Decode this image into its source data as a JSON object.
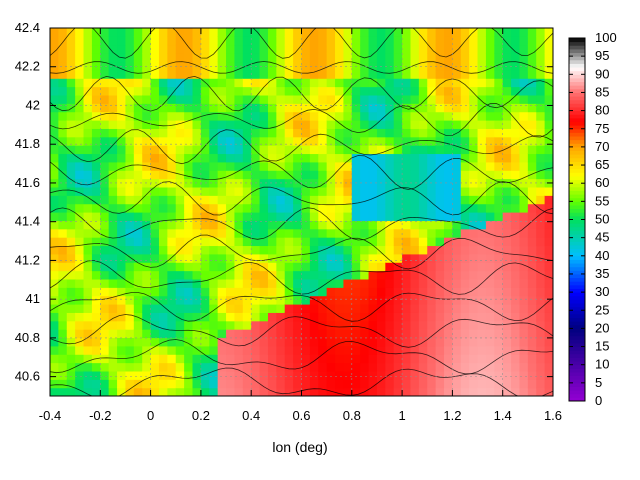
{
  "chart_data": {
    "type": "heatmap",
    "xlabel": "lon (deg)",
    "ylabel": "",
    "xlim": [
      -0.4,
      1.6
    ],
    "ylim": [
      40.5,
      42.4
    ],
    "x_ticks": [
      "-0.4",
      "-0.2",
      "0",
      "0.2",
      "0.4",
      "0.6",
      "0.8",
      "1",
      "1.2",
      "1.4",
      "1.6"
    ],
    "x_tick_values": [
      -0.4,
      -0.2,
      0,
      0.2,
      0.4,
      0.6,
      0.8,
      1.0,
      1.2,
      1.4,
      1.6
    ],
    "y_ticks": [
      "40.6",
      "40.8",
      "41",
      "41.2",
      "41.4",
      "41.6",
      "41.8",
      "42",
      "42.2",
      "42.4"
    ],
    "y_tick_values": [
      40.6,
      40.8,
      41.0,
      41.2,
      41.4,
      41.6,
      41.8,
      42.0,
      42.2,
      42.4
    ],
    "colorbar": {
      "range": [
        0,
        100
      ],
      "ticks": [
        "0",
        "5",
        "10",
        "15",
        "20",
        "25",
        "30",
        "35",
        "40",
        "45",
        "50",
        "55",
        "60",
        "65",
        "70",
        "75",
        "80",
        "85",
        "90",
        "95",
        "100"
      ],
      "tick_values": [
        0,
        5,
        10,
        15,
        20,
        25,
        30,
        35,
        40,
        45,
        50,
        55,
        60,
        65,
        70,
        75,
        80,
        85,
        90,
        95,
        100
      ],
      "stops": [
        {
          "v": 0,
          "color": "#9400d3"
        },
        {
          "v": 20,
          "color": "#000080"
        },
        {
          "v": 30,
          "color": "#0000ff"
        },
        {
          "v": 40,
          "color": "#00bfff"
        },
        {
          "v": 50,
          "color": "#00e060"
        },
        {
          "v": 55,
          "color": "#60ff00"
        },
        {
          "v": 62,
          "color": "#ffff00"
        },
        {
          "v": 70,
          "color": "#ffa500"
        },
        {
          "v": 77,
          "color": "#ff0000"
        },
        {
          "v": 85,
          "color": "#ff7070"
        },
        {
          "v": 92,
          "color": "#ffffff"
        },
        {
          "v": 100,
          "color": "#000000"
        }
      ]
    },
    "grid": true,
    "contours": true,
    "legend": "colorbar-right"
  }
}
